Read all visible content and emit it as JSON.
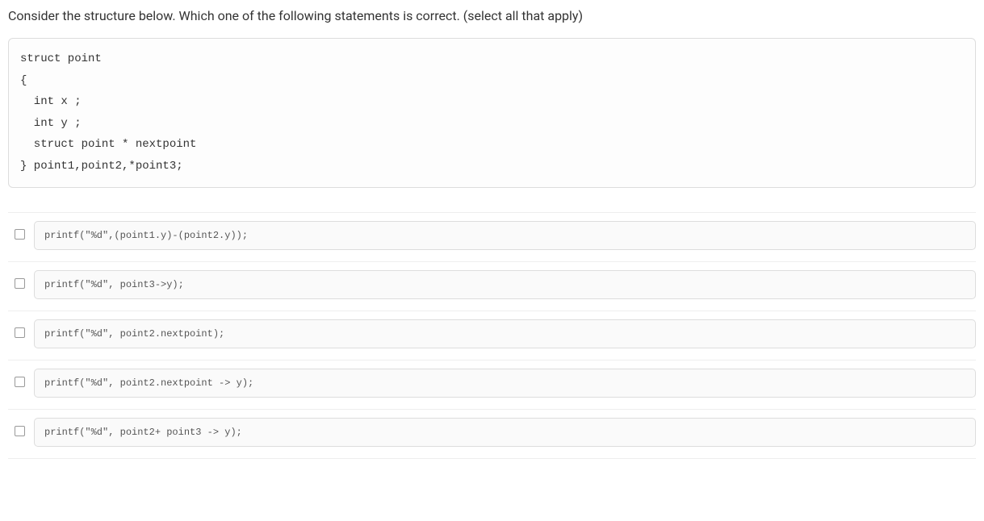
{
  "question": {
    "prompt": "Consider the structure below. Which one of the following statements is correct. (select all that apply)"
  },
  "codeBlock": {
    "lines": [
      {
        "text": "struct point",
        "indent": 0
      },
      {
        "text": "{",
        "indent": 0
      },
      {
        "text": "  int x ;",
        "indent": 0
      },
      {
        "text": "  int y ;",
        "indent": 0
      },
      {
        "text": "  struct point * nextpoint",
        "indent": 0
      },
      {
        "text": "} point1,point2,*point3;",
        "indent": 0
      }
    ],
    "fontFamily": "Courier New",
    "fontSize": 14,
    "background": "#fdfdfd",
    "borderColor": "#dddddd"
  },
  "options": [
    {
      "code": "printf(\"%d\",(point1.y)-(point2.y));"
    },
    {
      "code": "printf(\"%d\", point3->y);"
    },
    {
      "code": "printf(\"%d\", point2.nextpoint);"
    },
    {
      "code": "printf(\"%d\", point2.nextpoint -> y);"
    },
    {
      "code": "printf(\"%d\", point2+ point3 -> y);"
    }
  ],
  "styles": {
    "questionFontSize": 16,
    "optionFontSize": 12,
    "borderColor": "#dddddd",
    "separatorColor": "#eeeeee",
    "checkboxBorder": "#999999",
    "textColor": "#333333",
    "optionTextColor": "#555555",
    "background": "#ffffff"
  }
}
